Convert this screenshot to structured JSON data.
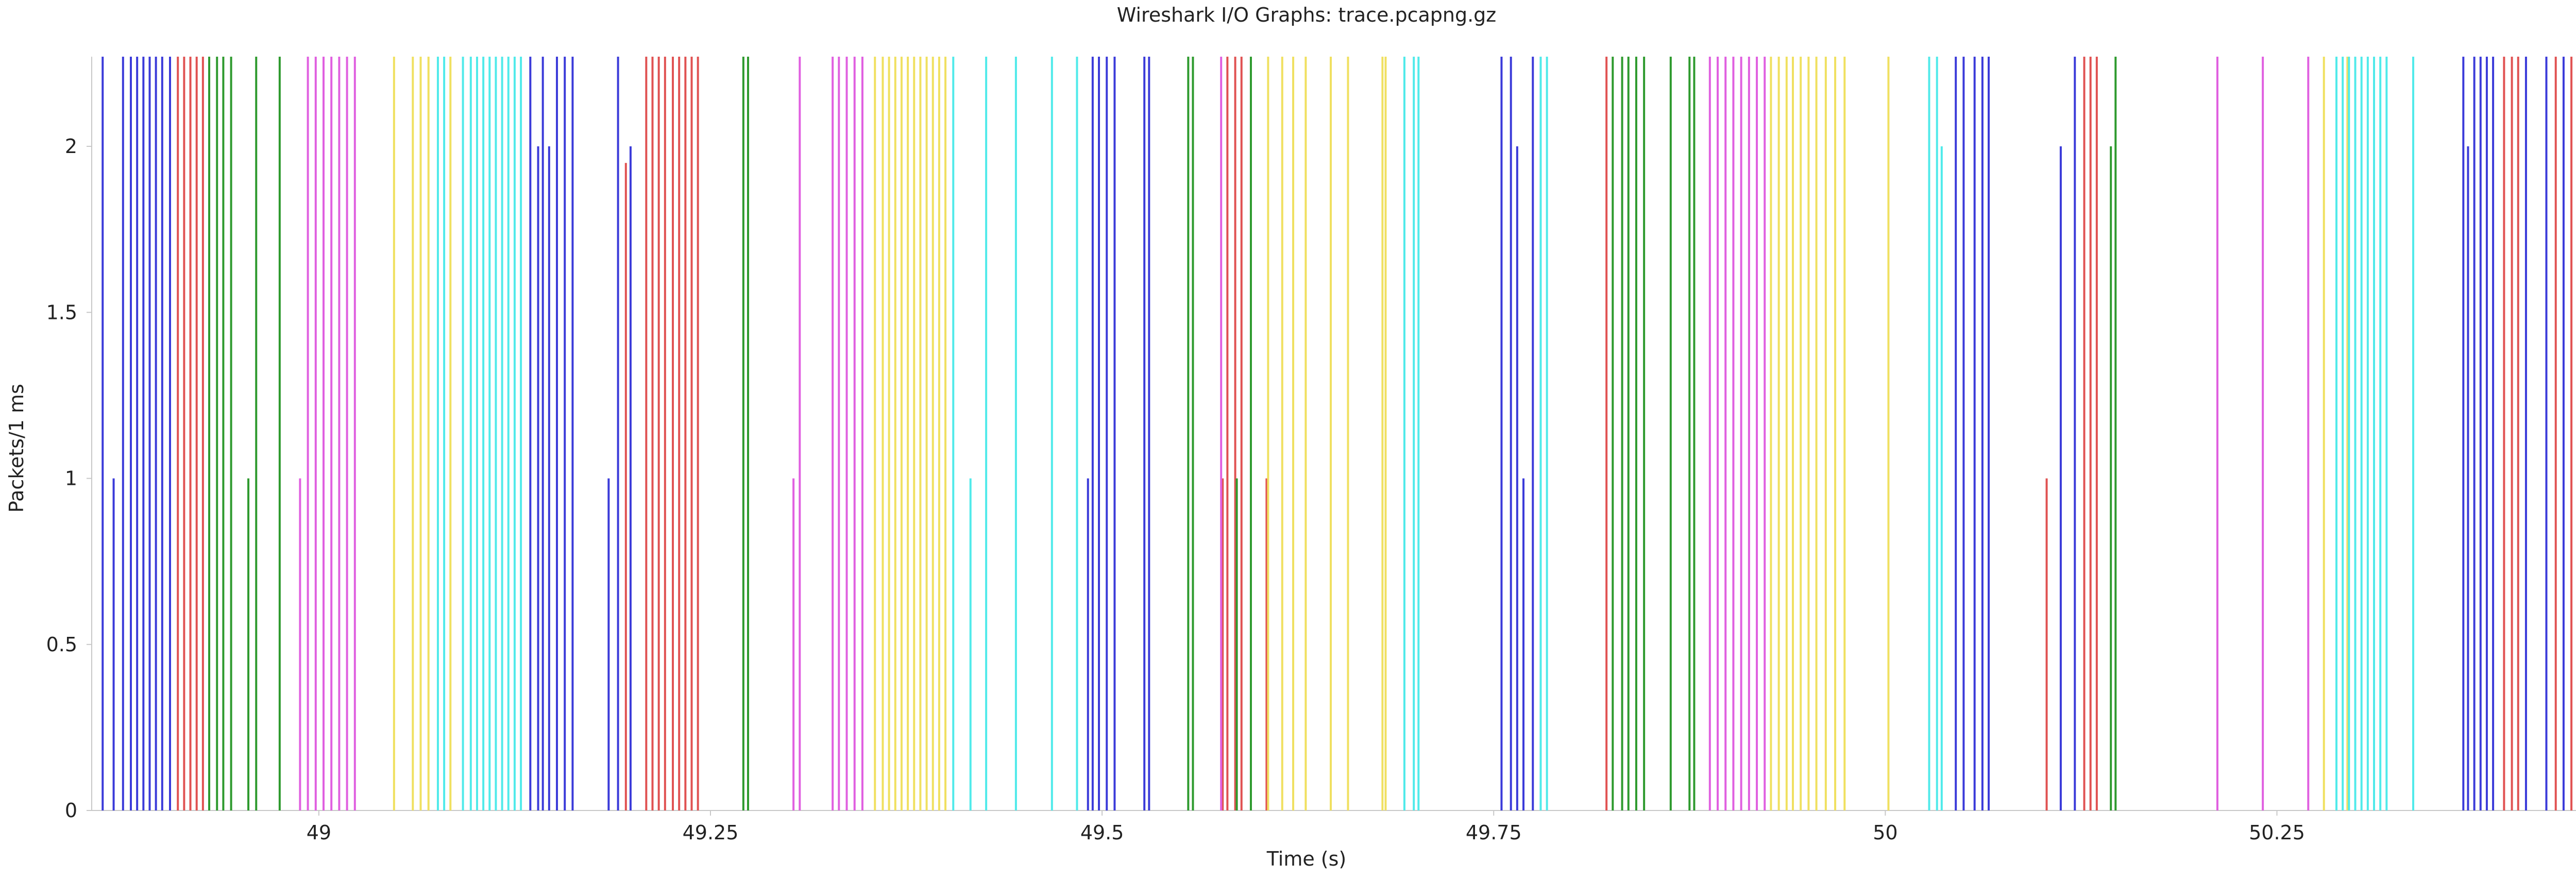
{
  "chart_data": {
    "type": "bar",
    "title": "Wireshark I/O Graphs: trace.pcapng.gz",
    "xlabel": "Time (s)",
    "ylabel": "Packets/1 ms",
    "xlim": [
      48.855,
      50.46
    ],
    "ylim": [
      0,
      2.27
    ],
    "x_ticks": [
      49,
      49.25,
      49.5,
      49.75,
      50,
      50.25
    ],
    "x_tick_labels": [
      "49",
      "49.25",
      "49.5",
      "49.75",
      "50",
      "50.25"
    ],
    "y_ticks": [
      0,
      0.5,
      1,
      1.5,
      2
    ],
    "y_tick_labels": [
      "0",
      "0.5",
      "1",
      "1.5",
      "2"
    ],
    "bar_width": 0.0015,
    "grid": false,
    "colors": {
      "blue": "#3b3bd9",
      "red": "#e05252",
      "green": "#2e9a2e",
      "magenta": "#e060e0",
      "yellow": "#f0e060",
      "cyan": "#50eaea"
    },
    "series": [
      {
        "color": "blue",
        "x": [
          48.862,
          48.869,
          48.875,
          48.88,
          48.884,
          48.888,
          48.892,
          48.896,
          48.9,
          48.905,
          49.135,
          49.14,
          49.143,
          49.147,
          49.152,
          49.157,
          49.162,
          49.185,
          49.191,
          49.199,
          49.491,
          49.494,
          49.498,
          49.503,
          49.508,
          49.527,
          49.53,
          49.755,
          49.761,
          49.765,
          49.769,
          49.775,
          50.112,
          50.121,
          50.045,
          50.05,
          50.057,
          50.062,
          50.066,
          50.369,
          50.372,
          50.376,
          50.38,
          50.384,
          50.388,
          50.409,
          50.422,
          50.433
        ],
        "y": [
          2.27,
          1,
          2.27,
          2.27,
          2.27,
          2.27,
          2.27,
          2.27,
          2.27,
          2.27,
          2.27,
          2,
          2.27,
          2,
          2.27,
          2.27,
          2.27,
          1,
          2.27,
          2,
          1,
          2.27,
          2.27,
          2.27,
          2.27,
          2.27,
          2.27,
          2.27,
          2.27,
          2,
          1,
          2.27,
          2,
          2.27,
          2.27,
          2.27,
          2.27,
          2.27,
          2.27,
          2.27,
          2,
          2.27,
          2.27,
          2.27,
          2.27,
          2.27,
          2.27,
          2.27
        ]
      },
      {
        "color": "red",
        "x": [
          48.91,
          48.914,
          48.918,
          48.922,
          48.926,
          49.196,
          49.209,
          49.213,
          49.217,
          49.221,
          49.226,
          49.23,
          49.234,
          49.238,
          49.242,
          49.577,
          49.58,
          49.585,
          49.589,
          49.605,
          49.822,
          50.103,
          50.127,
          50.131,
          50.135,
          50.395,
          50.4,
          50.404,
          50.428,
          50.438,
          50.444
        ],
        "y": [
          2.27,
          2.27,
          2.27,
          2.27,
          2.27,
          1.95,
          2.27,
          2.27,
          2.27,
          2.27,
          2.27,
          2.27,
          2.27,
          2.27,
          2.27,
          1,
          2.27,
          2.27,
          2.27,
          1,
          2.27,
          1,
          2.27,
          2.27,
          2.27,
          2.27,
          2.27,
          2.27,
          2.27,
          2.27,
          2.27
        ]
      },
      {
        "color": "green",
        "x": [
          48.93,
          48.935,
          48.939,
          48.944,
          48.955,
          48.96,
          48.975,
          49.271,
          49.274,
          49.555,
          49.558,
          49.586,
          49.595,
          49.826,
          49.832,
          49.836,
          49.841,
          49.846,
          49.863,
          49.875,
          49.878,
          50.144,
          50.147
        ],
        "y": [
          2.27,
          2.27,
          2.27,
          2.27,
          1,
          2.27,
          2.27,
          2.27,
          2.27,
          2.27,
          2.27,
          1,
          2.27,
          2.27,
          2.27,
          2.27,
          2.27,
          2.27,
          2.27,
          2.27,
          2.27,
          2,
          2.27
        ]
      },
      {
        "color": "magenta",
        "x": [
          48.988,
          48.993,
          48.998,
          49.003,
          49.008,
          49.013,
          49.018,
          49.023,
          49.303,
          49.307,
          49.328,
          49.332,
          49.337,
          49.342,
          49.347,
          49.576,
          49.888,
          49.893,
          49.898,
          49.903,
          49.908,
          49.913,
          49.918,
          49.923,
          50.212,
          50.241,
          50.27
        ],
        "y": [
          1,
          2.27,
          2.27,
          2.27,
          2.27,
          2.27,
          2.27,
          2.27,
          1,
          2.27,
          2.27,
          2.27,
          2.27,
          2.27,
          2.27,
          2.27,
          2.27,
          2.27,
          2.27,
          2.27,
          2.27,
          2.27,
          2.27,
          2.27,
          2.27,
          2.27,
          2.27
        ]
      },
      {
        "color": "yellow",
        "x": [
          49.048,
          49.06,
          49.065,
          49.07,
          49.084,
          49.355,
          49.36,
          49.364,
          49.368,
          49.372,
          49.376,
          49.38,
          49.384,
          49.388,
          49.392,
          49.396,
          49.4,
          49.606,
          49.615,
          49.622,
          49.63,
          49.646,
          49.657,
          49.679,
          49.681,
          49.927,
          49.932,
          49.937,
          49.941,
          49.946,
          49.951,
          49.956,
          49.962,
          49.968,
          49.974,
          50.002,
          50.28,
          50.295
        ],
        "y": [
          2.27,
          2.27,
          2.27,
          2.27,
          2.27,
          2.27,
          2.27,
          2.27,
          2.27,
          2.27,
          2.27,
          2.27,
          2.27,
          2.27,
          2.27,
          2.27,
          2.27,
          2.27,
          2.27,
          2.27,
          2.27,
          2.27,
          2.27,
          2.27,
          2.27,
          2.27,
          2.27,
          2.27,
          2.27,
          2.27,
          2.27,
          2.27,
          2.27,
          2.27,
          2.27,
          2.27,
          2.27,
          2.27
        ]
      },
      {
        "color": "cyan",
        "x": [
          49.076,
          49.08,
          49.092,
          49.097,
          49.101,
          49.105,
          49.109,
          49.113,
          49.117,
          49.121,
          49.125,
          49.129,
          49.405,
          49.416,
          49.426,
          49.445,
          49.468,
          49.484,
          49.693,
          49.699,
          49.702,
          49.78,
          49.784,
          50.028,
          50.033,
          50.036,
          50.288,
          50.292,
          50.296,
          50.3,
          50.304,
          50.308,
          50.312,
          50.316,
          50.32,
          50.337
        ],
        "y": [
          2.27,
          2.27,
          2.27,
          2.27,
          2.27,
          2.27,
          2.27,
          2.27,
          2.27,
          2.27,
          2.27,
          2.27,
          2.27,
          1,
          2.27,
          2.27,
          2.27,
          2.27,
          2.27,
          2.27,
          2.27,
          2.27,
          2.27,
          2.27,
          2.27,
          2,
          2.27,
          2.27,
          2.27,
          2.27,
          2.27,
          2.27,
          2.27,
          2.27,
          2.27,
          2.27
        ]
      }
    ]
  }
}
